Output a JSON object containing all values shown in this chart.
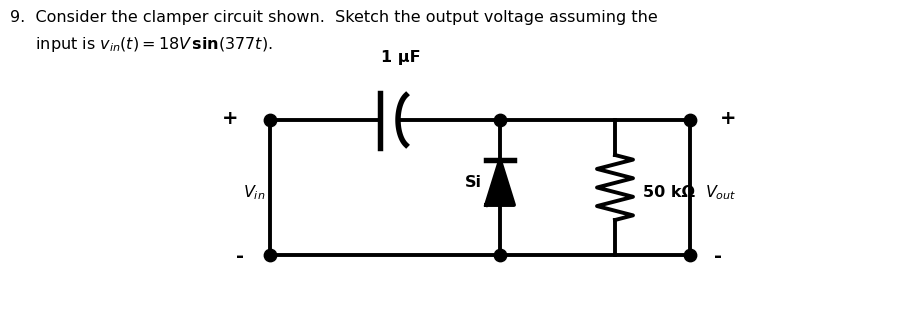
{
  "background_color": "#ffffff",
  "line_color": "#000000",
  "text_color": "#000000",
  "lw": 2.8,
  "dot_size": 80,
  "cap_label": "1 μF",
  "diode_label": "Si",
  "resistor_label": "50 kΩ",
  "vin_label": "V",
  "vin_sub": "in",
  "vout_label": "V",
  "vout_sub": "out",
  "plus_top_left": "+",
  "minus_bot_left": "-",
  "plus_top_right": "+",
  "minus_bot_right": "-",
  "title_line1": "9.  Consider the clamper circuit shown.  Sketch the output voltage assuming the",
  "title_line2": "     input is $v_{in}(t) = 18V\\,\\mathbf{sin}(377t)$."
}
